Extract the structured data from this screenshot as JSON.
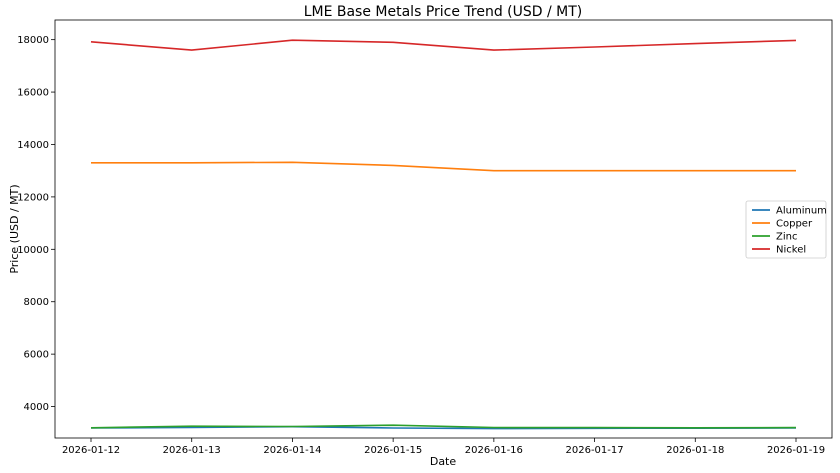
{
  "chart_data": {
    "type": "line",
    "title": "LME Base Metals Price Trend (USD / MT)",
    "xlabel": "Date",
    "ylabel": "Price (USD / MT)",
    "x": [
      "2026-01-12",
      "2026-01-13",
      "2026-01-14",
      "2026-01-15",
      "2026-01-16",
      "2026-01-17",
      "2026-01-18",
      "2026-01-19"
    ],
    "yticks": [
      4000,
      6000,
      8000,
      10000,
      12000,
      14000,
      16000,
      18000
    ],
    "ylim": [
      2800,
      18750
    ],
    "legend_position": "center-right",
    "grid": false,
    "series": [
      {
        "name": "Aluminum",
        "color": "#1f77b4",
        "values": [
          3180,
          3200,
          3230,
          3180,
          3160,
          3170,
          3175,
          3180
        ]
      },
      {
        "name": "Copper",
        "color": "#ff7f0e",
        "values": [
          13300,
          13300,
          13320,
          13200,
          13000,
          13000,
          13000,
          13000
        ]
      },
      {
        "name": "Zinc",
        "color": "#2ca02c",
        "values": [
          3190,
          3250,
          3240,
          3290,
          3200,
          3195,
          3190,
          3195
        ]
      },
      {
        "name": "Nickel",
        "color": "#d62728",
        "values": [
          17920,
          17600,
          17980,
          17900,
          17600,
          17720,
          17850,
          17970
        ]
      }
    ]
  }
}
